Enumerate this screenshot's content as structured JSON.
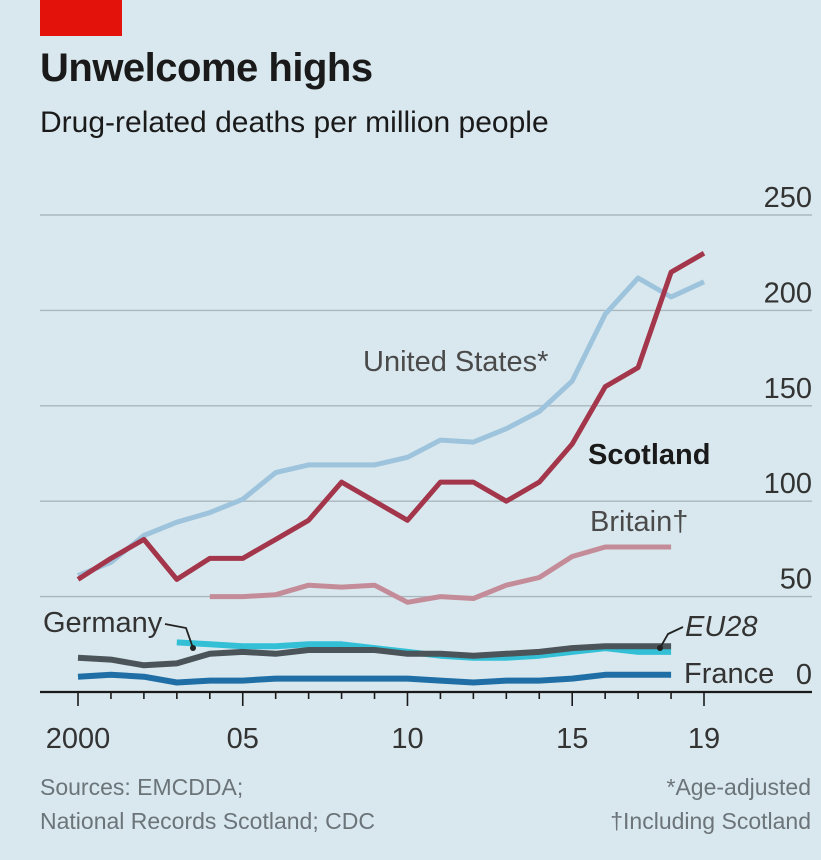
{
  "header": {
    "title": "Unwelcome highs",
    "subtitle": "Drug-related deaths per million people"
  },
  "footer": {
    "sources_line1": "Sources: EMCDDA;",
    "sources_line2": "National Records Scotland; CDC",
    "note1": "*Age-adjusted",
    "note2": "†Including Scotland"
  },
  "colors": {
    "background": "#d9e8ee",
    "accent": "#e3120b",
    "united_states": "#9dc4dc",
    "scotland": "#a3364b",
    "britain": "#c48c98",
    "germany": "#33c0d6",
    "eu28": "#4b5459",
    "france": "#1f6fa6"
  },
  "chart_data": {
    "type": "line",
    "title": "Unwelcome highs",
    "subtitle": "Drug-related deaths per million people",
    "xlabel": "",
    "ylabel": "",
    "xlim": [
      2000,
      2019
    ],
    "ylim": [
      0,
      250
    ],
    "x_ticks": [
      {
        "value": 2000,
        "label": "2000"
      },
      {
        "value": 2005,
        "label": "05"
      },
      {
        "value": 2010,
        "label": "10"
      },
      {
        "value": 2015,
        "label": "15"
      },
      {
        "value": 2019,
        "label": "19"
      }
    ],
    "y_ticks": [
      {
        "value": 0,
        "label": "0"
      },
      {
        "value": 50,
        "label": "50"
      },
      {
        "value": 100,
        "label": "100"
      },
      {
        "value": 150,
        "label": "150"
      },
      {
        "value": 200,
        "label": "200"
      },
      {
        "value": 250,
        "label": "250"
      }
    ],
    "grid": true,
    "series": [
      {
        "name": "United States*",
        "x": [
          2000,
          2001,
          2002,
          2003,
          2004,
          2005,
          2006,
          2007,
          2008,
          2009,
          2010,
          2011,
          2012,
          2013,
          2014,
          2015,
          2016,
          2017,
          2018,
          2019
        ],
        "values": [
          61,
          68,
          82,
          89,
          94,
          101,
          115,
          119,
          119,
          119,
          123,
          132,
          131,
          138,
          147,
          163,
          198,
          217,
          207,
          215
        ]
      },
      {
        "name": "Scotland",
        "x": [
          2000,
          2001,
          2002,
          2003,
          2004,
          2005,
          2006,
          2007,
          2008,
          2009,
          2010,
          2011,
          2012,
          2013,
          2014,
          2015,
          2016,
          2017,
          2018,
          2019
        ],
        "values": [
          59,
          70,
          80,
          59,
          70,
          70,
          80,
          90,
          110,
          100,
          90,
          110,
          110,
          100,
          110,
          130,
          160,
          170,
          220,
          230
        ]
      },
      {
        "name": "Britain†",
        "x": [
          2004,
          2005,
          2006,
          2007,
          2008,
          2009,
          2010,
          2011,
          2012,
          2013,
          2014,
          2015,
          2016,
          2017,
          2018
        ],
        "values": [
          50,
          50,
          51,
          56,
          55,
          56,
          47,
          50,
          49,
          56,
          60,
          71,
          76,
          76,
          76
        ]
      },
      {
        "name": "Germany",
        "x": [
          2003,
          2004,
          2005,
          2006,
          2007,
          2008,
          2009,
          2010,
          2011,
          2012,
          2013,
          2014,
          2015,
          2016,
          2017,
          2018
        ],
        "values": [
          26,
          25,
          24,
          24,
          25,
          25,
          23,
          21,
          19,
          18,
          18,
          19,
          21,
          23,
          21,
          21
        ]
      },
      {
        "name": "EU28",
        "x": [
          2000,
          2001,
          2002,
          2003,
          2004,
          2005,
          2006,
          2007,
          2008,
          2009,
          2010,
          2011,
          2012,
          2013,
          2014,
          2015,
          2016,
          2017,
          2018
        ],
        "values": [
          18,
          17,
          14,
          15,
          20,
          21,
          20,
          22,
          22,
          22,
          20,
          20,
          19,
          20,
          21,
          23,
          24,
          24,
          24
        ]
      },
      {
        "name": "France",
        "x": [
          2000,
          2001,
          2002,
          2003,
          2004,
          2005,
          2006,
          2007,
          2008,
          2009,
          2010,
          2011,
          2012,
          2013,
          2014,
          2015,
          2016,
          2017,
          2018
        ],
        "values": [
          8,
          9,
          8,
          5,
          6,
          6,
          7,
          7,
          7,
          7,
          7,
          6,
          5,
          6,
          6,
          7,
          9,
          9,
          9
        ]
      }
    ]
  }
}
